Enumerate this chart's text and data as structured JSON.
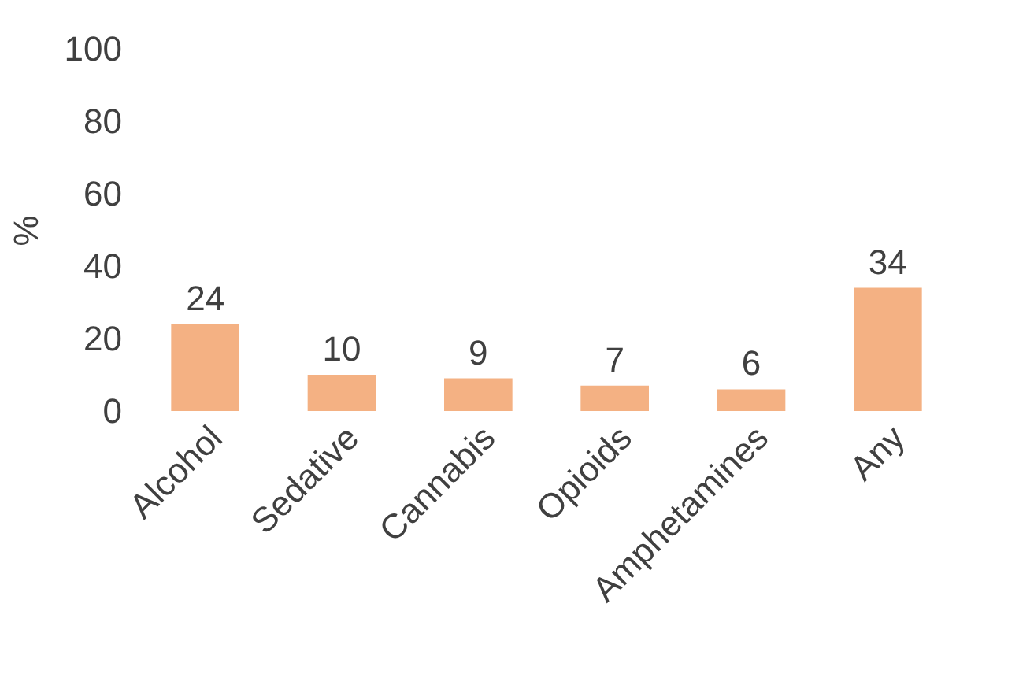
{
  "chart_data": {
    "type": "bar",
    "ylabel": "%",
    "categories": [
      "Alcohol",
      "Sedative",
      "Cannabis",
      "Opioids",
      "Amphetamines",
      "Any"
    ],
    "values": [
      24,
      10,
      9,
      7,
      6,
      34
    ],
    "color": "#f4b183",
    "ylim": [
      0,
      100
    ],
    "yticks": [
      0,
      20,
      40,
      60,
      80,
      100
    ],
    "grid": false,
    "data_labels": true
  }
}
